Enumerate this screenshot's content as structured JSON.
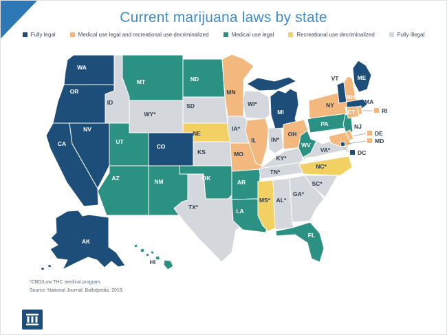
{
  "title": "Current marijuana laws by state",
  "accent": {
    "corner_triangle_color": "#2e77b5",
    "title_color": "#3f8ecb",
    "label_dark": "#2e3d4f",
    "label_light": "#ffffff",
    "callout_line_color": "#98a1a9",
    "footnote_color": "#5c6b76",
    "logo_background": "#1d4e7a"
  },
  "categories": {
    "fully_legal": {
      "label": "Fully legal",
      "color": "#1d4e7a"
    },
    "medical_decrim": {
      "label": "Medical use legal and recreational use decriminalized",
      "color": "#f3b87d"
    },
    "medical": {
      "label": "Medical use legal",
      "color": "#2b9183"
    },
    "decrim": {
      "label": "Recreational use decriminalized",
      "color": "#f2d061"
    },
    "fully_illegal": {
      "label": "Fully illegal",
      "color": "#d4d7db"
    }
  },
  "legend_order": [
    "fully_legal",
    "medical_decrim",
    "medical",
    "decrim",
    "fully_illegal"
  ],
  "states": [
    {
      "abbr": "WA",
      "label": "WA",
      "category": "fully_legal"
    },
    {
      "abbr": "OR",
      "label": "OR",
      "category": "fully_legal"
    },
    {
      "abbr": "CA",
      "label": "CA",
      "category": "fully_legal"
    },
    {
      "abbr": "NV",
      "label": "NV",
      "category": "fully_legal"
    },
    {
      "abbr": "ID",
      "label": "ID",
      "category": "fully_illegal"
    },
    {
      "abbr": "MT",
      "label": "MT",
      "category": "medical"
    },
    {
      "abbr": "WY",
      "label": "WY*",
      "category": "fully_illegal"
    },
    {
      "abbr": "UT",
      "label": "UT",
      "category": "medical"
    },
    {
      "abbr": "CO",
      "label": "CO",
      "category": "fully_legal"
    },
    {
      "abbr": "AZ",
      "label": "AZ",
      "category": "medical"
    },
    {
      "abbr": "NM",
      "label": "NM",
      "category": "medical"
    },
    {
      "abbr": "ND",
      "label": "ND",
      "category": "medical"
    },
    {
      "abbr": "SD",
      "label": "SD",
      "category": "fully_illegal"
    },
    {
      "abbr": "NE",
      "label": "NE",
      "category": "decrim"
    },
    {
      "abbr": "KS",
      "label": "KS",
      "category": "fully_illegal"
    },
    {
      "abbr": "OK",
      "label": "OK",
      "category": "medical"
    },
    {
      "abbr": "TX",
      "label": "TX*",
      "category": "fully_illegal"
    },
    {
      "abbr": "MN",
      "label": "MN",
      "category": "medical_decrim"
    },
    {
      "abbr": "IA",
      "label": "IA*",
      "category": "fully_illegal"
    },
    {
      "abbr": "MO",
      "label": "MO",
      "category": "medical_decrim"
    },
    {
      "abbr": "AR",
      "label": "AR",
      "category": "medical"
    },
    {
      "abbr": "LA",
      "label": "LA",
      "category": "medical"
    },
    {
      "abbr": "WI",
      "label": "WI*",
      "category": "fully_illegal"
    },
    {
      "abbr": "IL",
      "label": "IL",
      "category": "medical_decrim"
    },
    {
      "abbr": "IN",
      "label": "IN*",
      "category": "fully_illegal"
    },
    {
      "abbr": "MI",
      "label": "MI",
      "category": "fully_legal"
    },
    {
      "abbr": "OH",
      "label": "OH",
      "category": "medical_decrim"
    },
    {
      "abbr": "KY",
      "label": "KY*",
      "category": "fully_illegal"
    },
    {
      "abbr": "TN",
      "label": "TN*",
      "category": "fully_illegal"
    },
    {
      "abbr": "MS",
      "label": "MS*",
      "category": "decrim"
    },
    {
      "abbr": "AL",
      "label": "AL*",
      "category": "fully_illegal"
    },
    {
      "abbr": "GA",
      "label": "GA*",
      "category": "fully_illegal"
    },
    {
      "abbr": "WV",
      "label": "WV",
      "category": "medical"
    },
    {
      "abbr": "VA",
      "label": "VA*",
      "category": "fully_illegal"
    },
    {
      "abbr": "NC",
      "label": "NC*",
      "category": "decrim"
    },
    {
      "abbr": "SC",
      "label": "SC*",
      "category": "fully_illegal"
    },
    {
      "abbr": "FL",
      "label": "FL",
      "category": "medical"
    },
    {
      "abbr": "PA",
      "label": "PA",
      "category": "medical"
    },
    {
      "abbr": "NY",
      "label": "NY",
      "category": "medical_decrim"
    },
    {
      "abbr": "NJ",
      "label": "NJ",
      "category": "medical"
    },
    {
      "abbr": "VT",
      "label": "VT",
      "category": "fully_legal"
    },
    {
      "abbr": "NH",
      "label": "NH",
      "category": "medical_decrim"
    },
    {
      "abbr": "ME",
      "label": "ME",
      "category": "fully_legal"
    },
    {
      "abbr": "MA",
      "label": "MA",
      "category": "fully_legal"
    },
    {
      "abbr": "CT",
      "label": "CT",
      "category": "medical_decrim"
    },
    {
      "abbr": "RI",
      "label": "RI",
      "category": "medical_decrim"
    },
    {
      "abbr": "DE",
      "label": "DE",
      "category": "medical_decrim"
    },
    {
      "abbr": "MD",
      "label": "MD",
      "category": "medical_decrim"
    },
    {
      "abbr": "DC",
      "label": "DC",
      "category": "fully_legal"
    },
    {
      "abbr": "AK",
      "label": "AK",
      "category": "fully_legal"
    },
    {
      "abbr": "HI",
      "label": "HI",
      "category": "medical"
    }
  ],
  "callout_states": [
    "RI",
    "DE",
    "MD",
    "DC"
  ],
  "footnotes": [
    "*CBD/Low THC medical program.",
    "Source: National Journal; Ballotpedia, 2019."
  ],
  "logo": {
    "icon": "columns-icon"
  }
}
